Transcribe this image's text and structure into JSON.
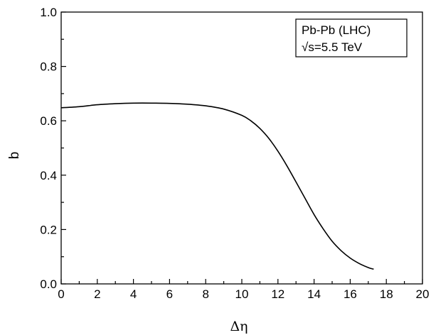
{
  "chart_data": {
    "type": "line",
    "xlabel": "Δη",
    "ylabel": "b",
    "xlim": [
      0,
      20
    ],
    "ylim": [
      0.0,
      1.0
    ],
    "xticks": [
      0,
      2,
      4,
      6,
      8,
      10,
      12,
      14,
      16,
      18,
      20
    ],
    "xtick_labels": [
      "0",
      "2",
      "4",
      "6",
      "8",
      "10",
      "12",
      "14",
      "16",
      "18",
      "20"
    ],
    "yticks": [
      0.0,
      0.2,
      0.4,
      0.6,
      0.8,
      1.0
    ],
    "ytick_labels": [
      "0.0",
      "0.2",
      "0.4",
      "0.6",
      "0.8",
      "1.0"
    ],
    "grid": false,
    "legend_placement": "top-right",
    "annotation": {
      "line1": "Pb-Pb (LHC)",
      "line2_sqrt": "√s",
      "line2_rest": "=5.5 TeV"
    },
    "series": [
      {
        "color": "#000000",
        "x": [
          0,
          1,
          2,
          3,
          4,
          5,
          6,
          7,
          8,
          9,
          10,
          10.5,
          11,
          11.5,
          12,
          12.5,
          13,
          13.5,
          14,
          14.5,
          15,
          15.5,
          16,
          16.5,
          17,
          17.3
        ],
        "y": [
          0.648,
          0.652,
          0.659,
          0.663,
          0.665,
          0.665,
          0.664,
          0.661,
          0.655,
          0.643,
          0.62,
          0.6,
          0.572,
          0.535,
          0.488,
          0.434,
          0.375,
          0.315,
          0.255,
          0.203,
          0.157,
          0.122,
          0.095,
          0.075,
          0.06,
          0.054
        ]
      }
    ]
  }
}
